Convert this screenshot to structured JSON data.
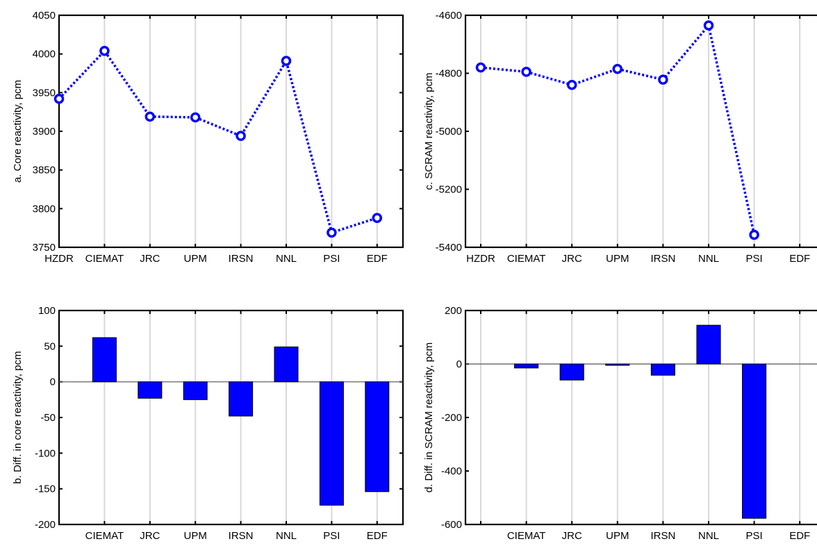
{
  "chart_data": [
    {
      "id": "a",
      "type": "line",
      "ylabel": "a. Core reactivity, pcm",
      "categories": [
        "HZDR",
        "CIEMAT",
        "JRC",
        "UPM",
        "IRSN",
        "NNL",
        "PSI",
        "EDF"
      ],
      "values": [
        3942,
        4004,
        3919,
        3918,
        3894,
        3991,
        3769,
        3788
      ],
      "ylim": [
        3750,
        4050
      ],
      "yticks": [
        3750,
        3800,
        3850,
        3900,
        3950,
        4000,
        4050
      ],
      "grid": "vertical",
      "color": "#0000FF"
    },
    {
      "id": "b",
      "type": "bar",
      "ylabel": "b. Diff. in core reactivity, pcm",
      "categories": [
        "",
        "CIEMAT",
        "JRC",
        "UPM",
        "IRSN",
        "NNL",
        "PSI",
        "EDF"
      ],
      "values": [
        0,
        62,
        -23,
        -25,
        -48,
        49,
        -173,
        -154
      ],
      "ylim": [
        -200,
        100
      ],
      "yticks": [
        -200,
        -150,
        -100,
        -50,
        0,
        50,
        100
      ],
      "grid": "vertical",
      "color": "#0000FF"
    },
    {
      "id": "c",
      "type": "line",
      "ylabel": "c. SCRAM reactivity, pcm",
      "categories": [
        "HZDR",
        "CIEMAT",
        "JRC",
        "UPM",
        "IRSN",
        "NNL",
        "PSI",
        "EDF"
      ],
      "values": [
        -4780,
        -4795,
        -4840,
        -4785,
        -4822,
        -4635,
        -5357,
        null
      ],
      "ylim": [
        -5400,
        -4600
      ],
      "yticks": [
        -5400,
        -5200,
        -5000,
        -4800,
        -4600
      ],
      "grid": "vertical",
      "color": "#0000FF"
    },
    {
      "id": "d",
      "type": "bar",
      "ylabel": "d. Diff. in SCRAM reactivity, pcm",
      "categories": [
        "",
        "CIEMAT",
        "JRC",
        "UPM",
        "IRSN",
        "NNL",
        "PSI",
        "EDF"
      ],
      "values": [
        0,
        -15,
        -60,
        -5,
        -42,
        145,
        -577,
        0
      ],
      "ylim": [
        -600,
        200
      ],
      "yticks": [
        -600,
        -400,
        -200,
        0,
        200
      ],
      "grid": "vertical",
      "color": "#0000FF"
    }
  ]
}
